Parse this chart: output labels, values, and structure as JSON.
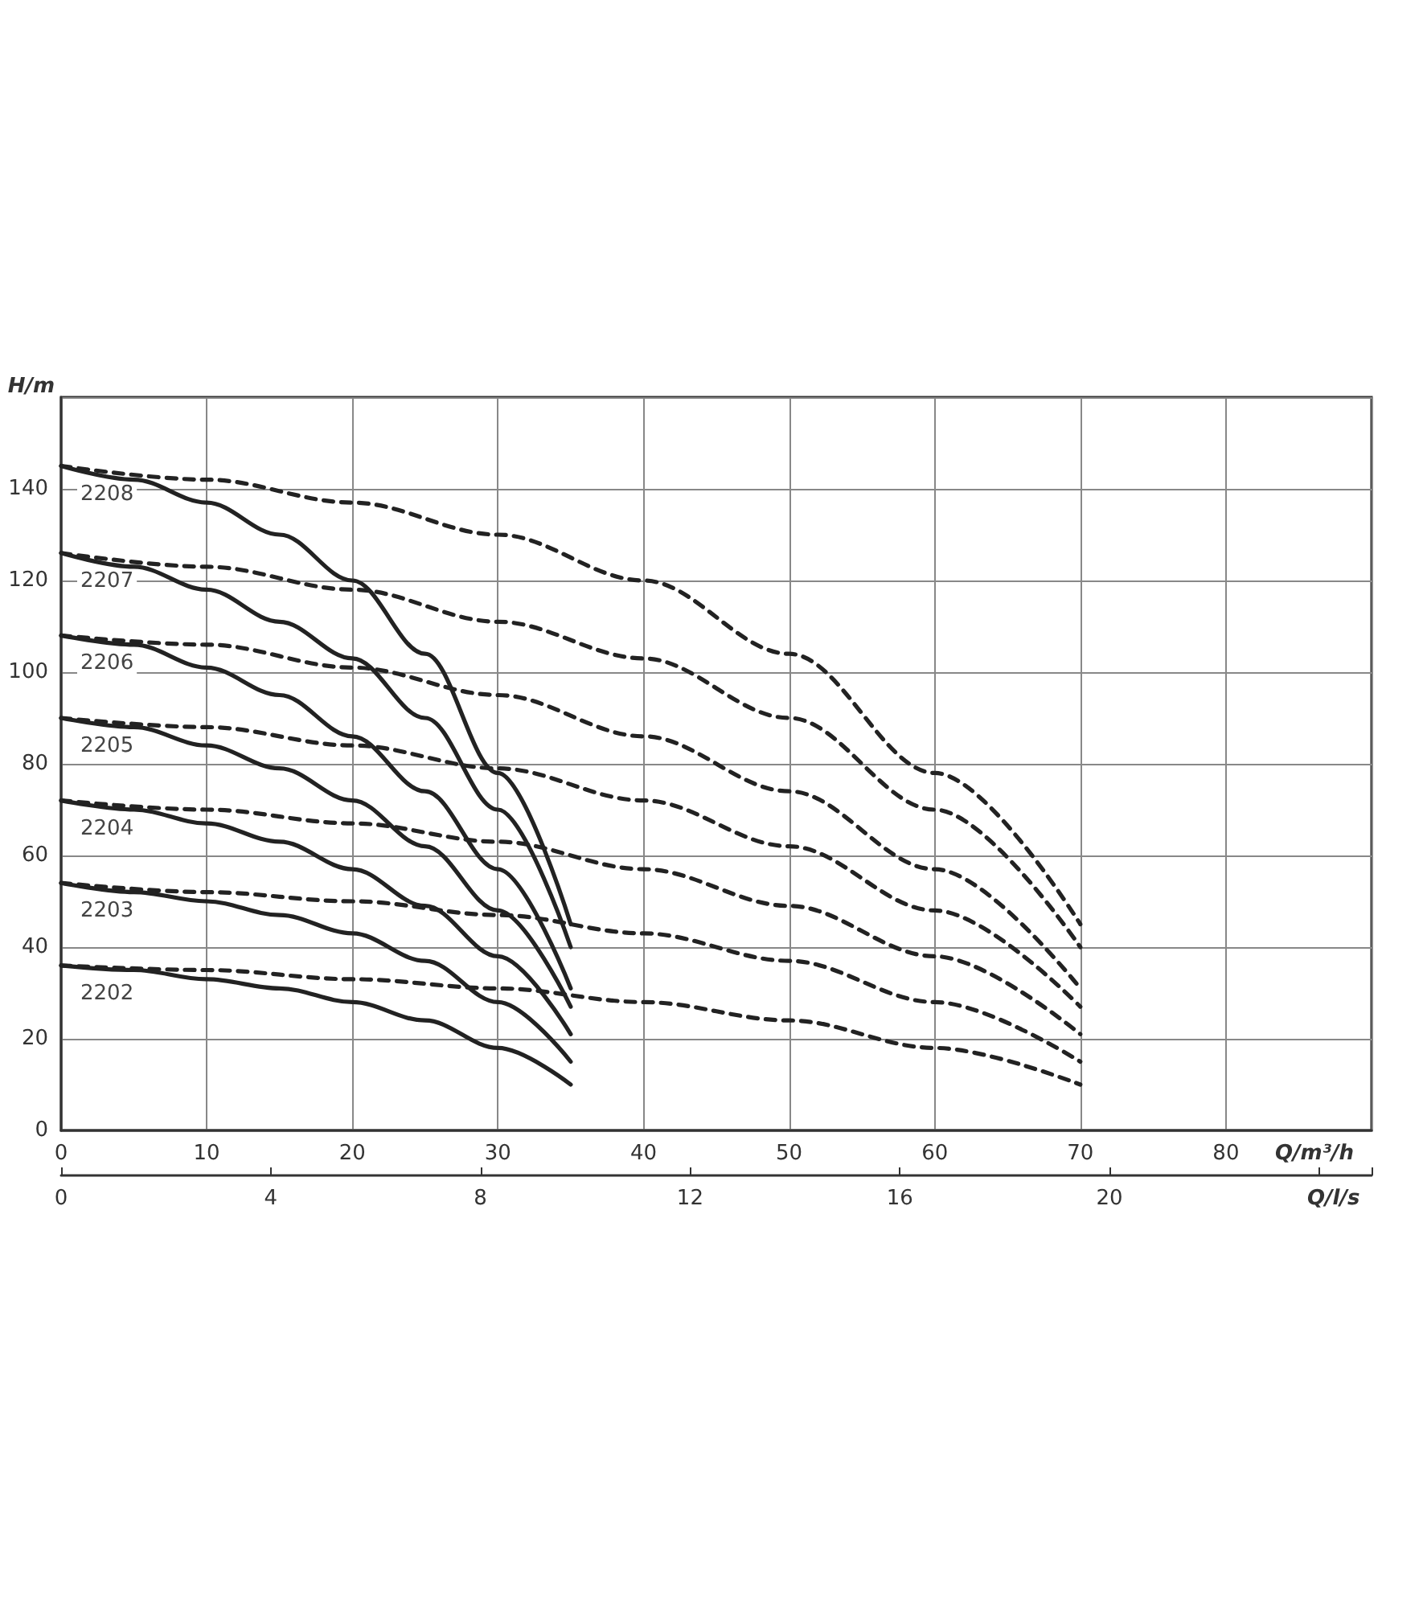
{
  "chart_data": {
    "type": "line",
    "xlabel": "Q/m³/h",
    "ylabel": "H/m",
    "x2label": "Q/l/s",
    "xlim": [
      0,
      90
    ],
    "xticks": [
      0,
      10,
      20,
      30,
      40,
      50,
      60,
      70,
      80
    ],
    "ylim": [
      0,
      160
    ],
    "yticks": [
      0,
      20,
      40,
      60,
      80,
      100,
      120,
      140
    ],
    "x2lim": [
      0,
      25
    ],
    "x2ticks": [
      0,
      4,
      8,
      12,
      16,
      20
    ],
    "grid": true,
    "legend": false,
    "marker": "none",
    "series": [
      {
        "name": "2208",
        "color": "#222222",
        "line_style": "solid",
        "x": [
          0,
          5,
          10,
          15,
          20,
          25,
          30,
          35
        ],
        "values": [
          145,
          142,
          137,
          130,
          120,
          104,
          78,
          45
        ]
      },
      {
        "name": "2207",
        "color": "#222222",
        "line_style": "solid",
        "x": [
          0,
          5,
          10,
          15,
          20,
          25,
          30,
          35
        ],
        "values": [
          126,
          123,
          118,
          111,
          103,
          90,
          70,
          40
        ]
      },
      {
        "name": "2206",
        "color": "#222222",
        "line_style": "solid",
        "x": [
          0,
          5,
          10,
          15,
          20,
          25,
          30,
          35
        ],
        "values": [
          108,
          106,
          101,
          95,
          86,
          74,
          57,
          31
        ]
      },
      {
        "name": "2205",
        "color": "#222222",
        "line_style": "solid",
        "x": [
          0,
          5,
          10,
          15,
          20,
          25,
          30,
          35
        ],
        "values": [
          90,
          88,
          84,
          79,
          72,
          62,
          48,
          27
        ]
      },
      {
        "name": "2204",
        "color": "#222222",
        "line_style": "solid",
        "x": [
          0,
          5,
          10,
          15,
          20,
          25,
          30,
          35
        ],
        "values": [
          72,
          70,
          67,
          63,
          57,
          49,
          38,
          21
        ]
      },
      {
        "name": "2203",
        "color": "#222222",
        "line_style": "solid",
        "x": [
          0,
          5,
          10,
          15,
          20,
          25,
          30,
          35
        ],
        "values": [
          54,
          52,
          50,
          47,
          43,
          37,
          28,
          15
        ]
      },
      {
        "name": "2202",
        "color": "#222222",
        "line_style": "solid",
        "x": [
          0,
          5,
          10,
          15,
          20,
          25,
          30,
          35
        ],
        "values": [
          36,
          35,
          33,
          31,
          28,
          24,
          18,
          10
        ]
      },
      {
        "color": "#222222",
        "line_style": "dashed",
        "x": [
          0,
          10,
          20,
          30,
          40,
          50,
          60,
          70
        ],
        "values": [
          145,
          142,
          137,
          130,
          120,
          104,
          78,
          45
        ]
      },
      {
        "color": "#222222",
        "line_style": "dashed",
        "x": [
          0,
          10,
          20,
          30,
          40,
          50,
          60,
          70
        ],
        "values": [
          126,
          123,
          118,
          111,
          103,
          90,
          70,
          40
        ]
      },
      {
        "color": "#222222",
        "line_style": "dashed",
        "x": [
          0,
          10,
          20,
          30,
          40,
          50,
          60,
          70
        ],
        "values": [
          108,
          106,
          101,
          95,
          86,
          74,
          57,
          31
        ]
      },
      {
        "color": "#222222",
        "line_style": "dashed",
        "x": [
          0,
          10,
          20,
          30,
          40,
          50,
          60,
          70
        ],
        "values": [
          90,
          88,
          84,
          79,
          72,
          62,
          48,
          27
        ]
      },
      {
        "color": "#222222",
        "line_style": "dashed",
        "x": [
          0,
          10,
          20,
          30,
          40,
          50,
          60,
          70
        ],
        "values": [
          72,
          70,
          67,
          63,
          57,
          49,
          38,
          21
        ]
      },
      {
        "color": "#222222",
        "line_style": "dashed",
        "x": [
          0,
          10,
          20,
          30,
          40,
          50,
          60,
          70
        ],
        "values": [
          54,
          52,
          50,
          47,
          43,
          37,
          28,
          15
        ]
      },
      {
        "color": "#222222",
        "line_style": "dashed",
        "x": [
          0,
          10,
          20,
          30,
          40,
          50,
          60,
          70
        ],
        "values": [
          36,
          35,
          33,
          31,
          28,
          24,
          18,
          10
        ]
      }
    ]
  }
}
